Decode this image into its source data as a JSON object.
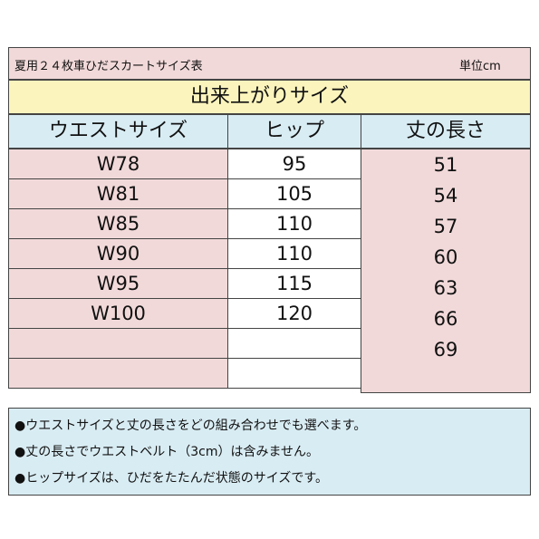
{
  "title": "夏用２４枚車ひだスカートサイズ表",
  "unit": "単位cm",
  "section_header": "出来上がりサイズ",
  "columns": {
    "waist": "ウエストサイズ",
    "hip": "ヒップ",
    "length": "丈の長さ"
  },
  "waist_sizes": [
    "W78",
    "W81",
    "W85",
    "W90",
    "W95",
    "W100",
    "",
    ""
  ],
  "hip_sizes": [
    "95",
    "105",
    "110",
    "110",
    "115",
    "120",
    "",
    ""
  ],
  "lengths": [
    "51",
    "54",
    "57",
    "60",
    "63",
    "66",
    "69"
  ],
  "notes": [
    "●ウエストサイズと丈の長さをどの組み合わせでも選べます。",
    "●丈の長さでウエストベルト（3cm）は含みません。",
    "●ヒップサイズは、ひだをたたんだ状態のサイズです。"
  ]
}
